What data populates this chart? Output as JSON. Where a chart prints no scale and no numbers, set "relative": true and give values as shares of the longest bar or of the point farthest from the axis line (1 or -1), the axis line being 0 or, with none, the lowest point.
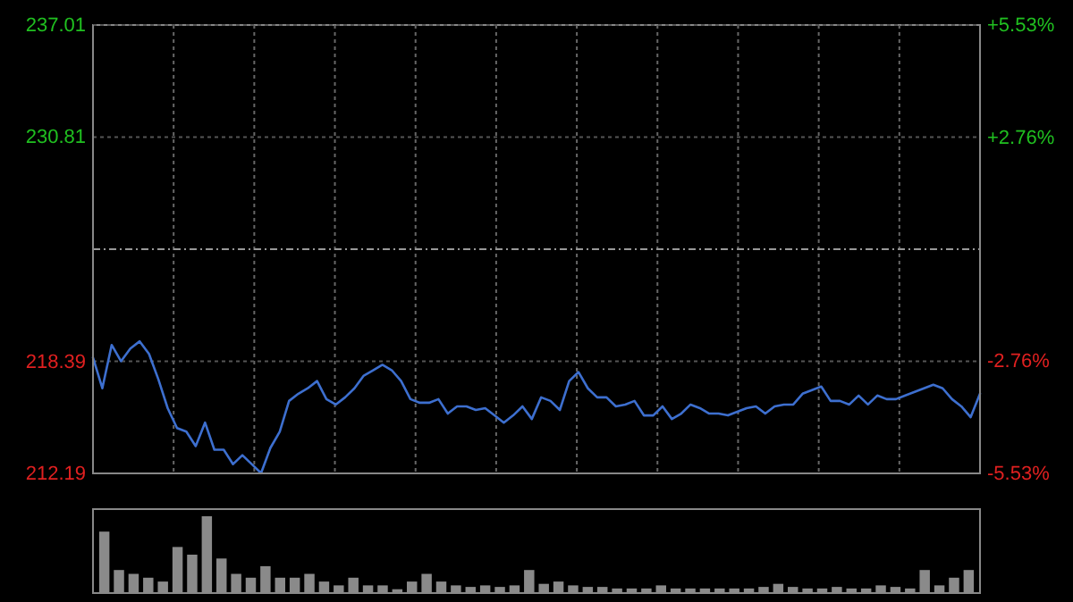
{
  "chart_data": [
    {
      "type": "line",
      "categories": [
        null,
        null,
        null,
        null,
        null,
        null,
        null,
        null,
        null,
        null,
        null,
        null,
        null,
        null,
        null,
        null,
        null,
        null,
        null,
        null,
        null,
        null,
        null,
        null,
        null,
        null,
        null,
        null,
        null,
        null,
        null,
        null,
        null,
        null,
        null,
        null,
        null,
        null,
        null,
        null,
        null,
        null,
        null,
        null,
        null,
        null,
        null,
        null,
        null,
        null,
        null,
        null,
        null,
        null,
        null,
        null,
        null,
        null,
        null,
        null,
        null,
        null,
        null,
        null,
        null,
        null,
        null,
        null,
        null,
        null,
        null,
        null,
        null,
        null,
        null,
        null,
        null,
        null,
        null,
        null,
        null,
        null,
        null,
        null,
        null,
        null,
        null,
        null,
        null,
        null,
        null,
        null,
        null,
        null,
        null,
        null
      ],
      "ylim": [
        212.19,
        237.01
      ],
      "yticks": [
        212.19,
        218.39,
        230.81,
        237.01
      ],
      "y2lim": [
        -5.53,
        5.53
      ],
      "y2ticks": [
        {
          "value": -5.53,
          "label": "-5.53%"
        },
        {
          "value": -2.76,
          "label": "-2.76%"
        },
        {
          "value": 2.76,
          "label": "+2.76%"
        },
        {
          "value": 5.53,
          "label": "+5.53%"
        }
      ],
      "grid": true,
      "ref_lines": [
        {
          "axis": "y2",
          "value": 0,
          "color": "#999999",
          "line_style": "dashdot"
        }
      ],
      "series": [
        {
          "color": "#3d6fcf",
          "values": [
            218.6,
            216.9,
            219.3,
            218.4,
            219.1,
            219.5,
            218.8,
            217.4,
            215.8,
            214.7,
            214.5,
            213.7,
            215.0,
            213.5,
            213.5,
            212.7,
            213.2,
            212.7,
            212.2,
            213.6,
            214.5,
            216.2,
            216.6,
            216.9,
            217.3,
            216.3,
            216.0,
            216.4,
            216.9,
            217.6,
            217.9,
            218.2,
            217.9,
            217.3,
            216.3,
            216.1,
            216.1,
            216.3,
            215.5,
            215.9,
            215.9,
            215.7,
            215.8,
            215.4,
            215.0,
            215.4,
            215.9,
            215.2,
            216.4,
            216.2,
            215.7,
            217.3,
            217.8,
            216.9,
            216.4,
            216.4,
            215.9,
            216.0,
            216.2,
            215.4,
            215.4,
            215.9,
            215.2,
            215.5,
            216.0,
            215.8,
            215.5,
            215.5,
            215.4,
            215.6,
            215.8,
            215.9,
            215.5,
            215.9,
            216.0,
            216.0,
            216.6,
            216.8,
            217.0,
            216.2,
            216.2,
            216.0,
            216.5,
            216.0,
            216.5,
            216.3,
            216.3,
            216.5,
            216.7,
            216.9,
            217.1,
            216.9,
            216.3,
            215.9,
            215.3,
            216.6
          ]
        }
      ]
    },
    {
      "type": "bar",
      "relative": true,
      "color": "#8a8a8a",
      "categories": [
        null,
        null,
        null,
        null,
        null,
        null,
        null,
        null,
        null,
        null,
        null,
        null,
        null,
        null,
        null,
        null,
        null,
        null,
        null,
        null,
        null,
        null,
        null,
        null,
        null,
        null,
        null,
        null,
        null,
        null,
        null,
        null,
        null,
        null,
        null,
        null,
        null,
        null,
        null,
        null,
        null,
        null,
        null,
        null,
        null,
        null,
        null,
        null,
        null,
        null,
        null,
        null,
        null,
        null,
        null,
        null,
        null,
        null,
        null,
        null
      ],
      "values": [
        0.8,
        0.3,
        0.25,
        0.2,
        0.15,
        0.6,
        0.5,
        1,
        0.45,
        0.25,
        0.2,
        0.35,
        0.2,
        0.2,
        0.25,
        0.15,
        0.1,
        0.2,
        0.1,
        0.1,
        0.05,
        0.15,
        0.25,
        0.15,
        0.1,
        0.08,
        0.1,
        0.08,
        0.1,
        0.3,
        0.12,
        0.15,
        0.1,
        0.08,
        0.08,
        0.06,
        0.06,
        0.06,
        0.1,
        0.06,
        0.06,
        0.06,
        0.06,
        0.06,
        0.06,
        0.08,
        0.12,
        0.08,
        0.06,
        0.06,
        0.08,
        0.06,
        0.06,
        0.1,
        0.08,
        0.06,
        0.3,
        0.1,
        0.2,
        0.3
      ]
    }
  ]
}
